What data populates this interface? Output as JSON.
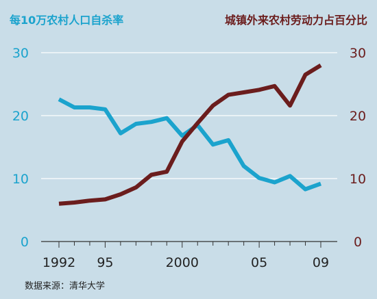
{
  "chart_data": {
    "type": "line",
    "left_title": "每10万农村人口自杀率",
    "right_title": "城镇外来农村劳动力占百分比",
    "source": "数据来源：清华大学",
    "x_tick_labels": [
      "1992",
      "95",
      "2000",
      "05",
      "09"
    ],
    "x_tick_years": [
      1992,
      1995,
      2000,
      2005,
      2009
    ],
    "xlim": [
      1992,
      2009
    ],
    "y_left": {
      "lim": [
        0,
        30
      ],
      "ticks": [
        0,
        10,
        20,
        30
      ],
      "color": "#1ba3cd"
    },
    "y_right": {
      "lim": [
        0,
        30
      ],
      "ticks": [
        0,
        10,
        20,
        30
      ],
      "color": "#6b1d1d"
    },
    "grid": true,
    "x": [
      1992,
      1993,
      1994,
      1995,
      1996,
      1997,
      1998,
      1999,
      2000,
      2001,
      2002,
      2003,
      2004,
      2005,
      2006,
      2007,
      2008,
      2009
    ],
    "series": [
      {
        "axis": "left",
        "color": "#1ba3cd",
        "values": [
          22.6,
          21.3,
          21.3,
          21.0,
          17.2,
          18.7,
          19.0,
          19.6,
          16.8,
          18.5,
          15.4,
          16.1,
          12.0,
          10.1,
          9.4,
          10.4,
          8.3,
          9.2
        ]
      },
      {
        "axis": "right",
        "color": "#6b1d1d",
        "values": [
          6.0,
          6.2,
          6.5,
          6.7,
          7.5,
          8.6,
          10.6,
          11.1,
          15.9,
          18.8,
          21.6,
          23.3,
          23.7,
          24.1,
          24.7,
          21.6,
          26.5,
          28.0
        ]
      }
    ]
  }
}
